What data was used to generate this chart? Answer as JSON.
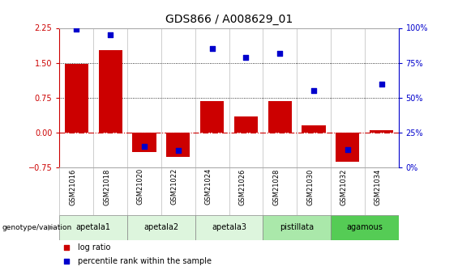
{
  "title": "GDS866 / A008629_01",
  "samples": [
    "GSM21016",
    "GSM21018",
    "GSM21020",
    "GSM21022",
    "GSM21024",
    "GSM21026",
    "GSM21028",
    "GSM21030",
    "GSM21032",
    "GSM21034"
  ],
  "log_ratio": [
    1.47,
    1.78,
    -0.42,
    -0.52,
    0.68,
    0.35,
    0.68,
    0.15,
    -0.62,
    0.05
  ],
  "percentile_rank": [
    99,
    95,
    15,
    12,
    85,
    79,
    82,
    55,
    13,
    60
  ],
  "group_names": [
    "apetala1",
    "apetala2",
    "apetala3",
    "pistillata",
    "agamous"
  ],
  "group_sizes": [
    2,
    2,
    2,
    2,
    2
  ],
  "group_colors": [
    "#ddf5dd",
    "#ddf5dd",
    "#ddf5dd",
    "#aae8aa",
    "#55cc55"
  ],
  "ylim_left": [
    -0.75,
    2.25
  ],
  "ylim_right": [
    0,
    100
  ],
  "yticks_left": [
    -0.75,
    0,
    0.75,
    1.5,
    2.25
  ],
  "yticks_right": [
    0,
    25,
    50,
    75,
    100
  ],
  "bar_color": "#cc0000",
  "dot_color": "#0000cc",
  "legend_red": "log ratio",
  "legend_blue": "percentile rank within the sample",
  "genotype_label": "genotype/variation",
  "left_tick_color": "#cc0000",
  "right_tick_color": "#0000cc",
  "title_fontsize": 10,
  "tick_fontsize": 7,
  "sample_fontsize": 6,
  "group_fontsize": 7,
  "legend_fontsize": 7
}
